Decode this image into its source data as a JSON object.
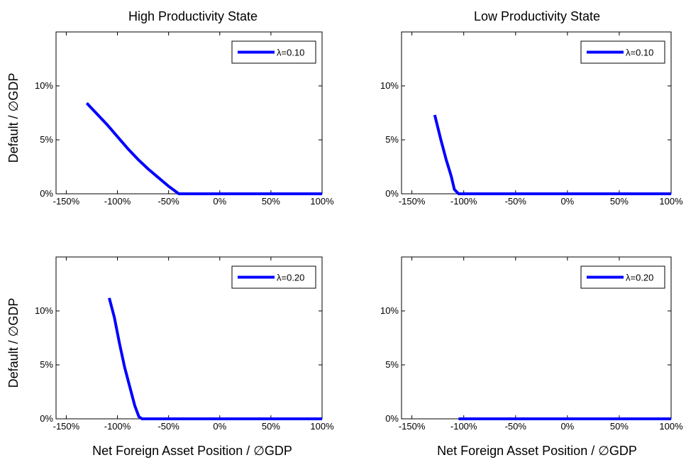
{
  "column_titles": [
    "High Productivity State",
    "Low Productivity State"
  ],
  "ylabel": "Default / ∅GDP",
  "xlabel": "Net Foreign Asset Position / ∅GDP",
  "series_color": "#0000ff",
  "chart_data": [
    {
      "type": "line",
      "title": "High Productivity State",
      "legend": "λ=0.10",
      "legend_position": "top-right",
      "xlim": [
        -160,
        100
      ],
      "ylim": [
        0,
        15
      ],
      "xticks": [
        -150,
        -100,
        -50,
        0,
        50,
        100
      ],
      "xtick_labels": [
        "-150%",
        "-100%",
        "-50%",
        "0%",
        "50%",
        "100%"
      ],
      "yticks": [
        0,
        5,
        10
      ],
      "ytick_labels": [
        "0%",
        "5%",
        "10%"
      ],
      "grid": false,
      "x": [
        -130,
        -120,
        -110,
        -100,
        -90,
        -80,
        -70,
        -60,
        -50,
        -40,
        -30,
        0,
        50,
        100
      ],
      "y": [
        8.4,
        7.4,
        6.4,
        5.3,
        4.2,
        3.2,
        2.3,
        1.5,
        0.7,
        0,
        0,
        0,
        0,
        0
      ]
    },
    {
      "type": "line",
      "title": "Low Productivity State",
      "legend": "λ=0.10",
      "legend_position": "top-right",
      "xlim": [
        -160,
        100
      ],
      "ylim": [
        0,
        15
      ],
      "xticks": [
        -150,
        -100,
        -50,
        0,
        50,
        100
      ],
      "xtick_labels": [
        "-150%",
        "-100%",
        "-50%",
        "0%",
        "50%",
        "100%"
      ],
      "yticks": [
        0,
        5,
        10
      ],
      "ytick_labels": [
        "0%",
        "5%",
        "10%"
      ],
      "grid": false,
      "x": [
        -128,
        -122,
        -117,
        -112,
        -109,
        -105,
        -100,
        -50,
        0,
        50,
        100
      ],
      "y": [
        7.3,
        5.0,
        3.2,
        1.6,
        0.4,
        0,
        0,
        0,
        0,
        0,
        0
      ]
    },
    {
      "type": "line",
      "title": "",
      "legend": "λ=0.20",
      "legend_position": "top-right",
      "xlim": [
        -160,
        100
      ],
      "ylim": [
        0,
        15
      ],
      "xticks": [
        -150,
        -100,
        -50,
        0,
        50,
        100
      ],
      "xtick_labels": [
        "-150%",
        "-100%",
        "-50%",
        "0%",
        "50%",
        "100%"
      ],
      "yticks": [
        0,
        5,
        10
      ],
      "ytick_labels": [
        "0%",
        "5%",
        "10%"
      ],
      "grid": false,
      "x": [
        -108,
        -103,
        -98,
        -93,
        -88,
        -83,
        -79,
        -76,
        -50,
        0,
        50,
        100
      ],
      "y": [
        11.2,
        9.4,
        7.0,
        4.8,
        3.0,
        1.2,
        0.2,
        0,
        0,
        0,
        0,
        0
      ]
    },
    {
      "type": "line",
      "title": "",
      "legend": "λ=0.20",
      "legend_position": "top-right",
      "xlim": [
        -160,
        100
      ],
      "ylim": [
        0,
        15
      ],
      "xticks": [
        -150,
        -100,
        -50,
        0,
        50,
        100
      ],
      "xtick_labels": [
        "-150%",
        "-100%",
        "-50%",
        "0%",
        "50%",
        "100%"
      ],
      "yticks": [
        0,
        5,
        10
      ],
      "ytick_labels": [
        "0%",
        "5%",
        "10%"
      ],
      "grid": false,
      "x": [
        -105,
        -50,
        0,
        50,
        100
      ],
      "y": [
        0,
        0,
        0,
        0,
        0
      ]
    }
  ]
}
